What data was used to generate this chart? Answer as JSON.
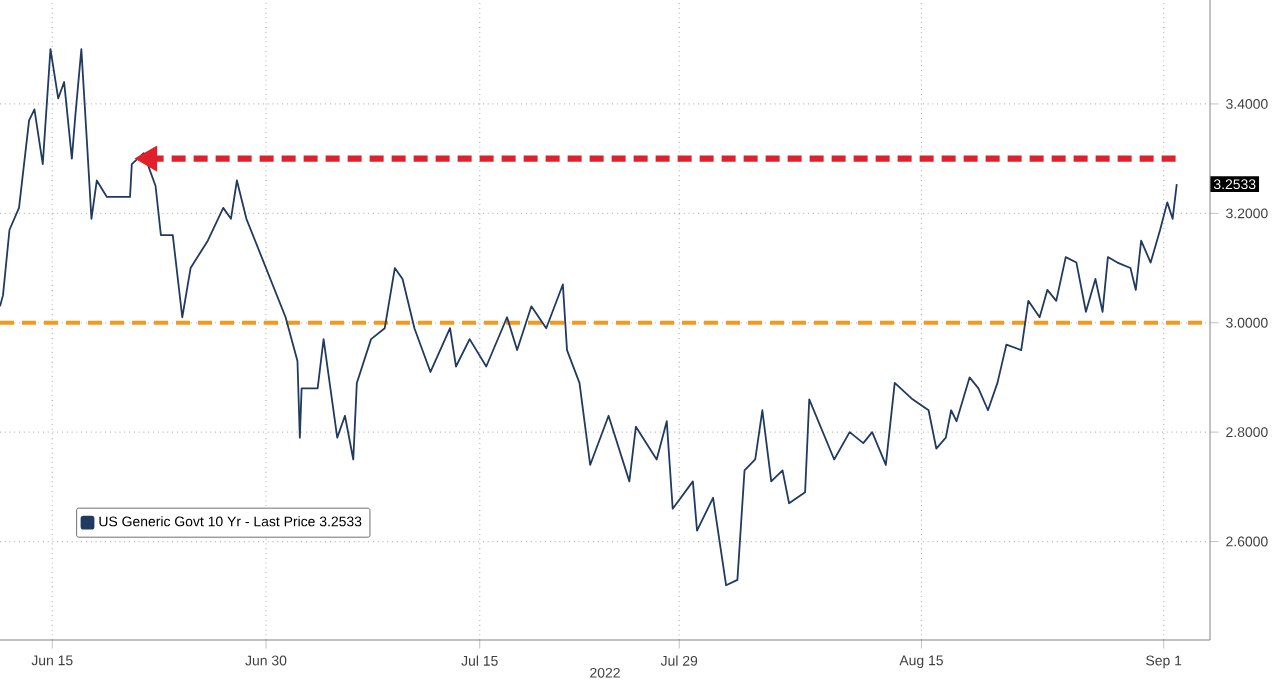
{
  "chart_data": {
    "type": "line",
    "xlabel": "2022",
    "xlim": [
      "2022-06-11T08:00",
      "2022-09-04T06:00"
    ],
    "xticks": [
      {
        "value": "2022-06-15",
        "label": "Jun 15"
      },
      {
        "value": "2022-06-30",
        "label": "Jun 30"
      },
      {
        "value": "2022-07-15",
        "label": "Jul 15"
      },
      {
        "value": "2022-07-29",
        "label": "Jul 29"
      },
      {
        "value": "2022-08-15",
        "label": "Aug 15"
      },
      {
        "value": "2022-09-01",
        "label": "Sep 1"
      }
    ],
    "ylim": [
      2.42,
      3.59
    ],
    "yticks": [
      {
        "value": 2.6,
        "label": "2.6000"
      },
      {
        "value": 2.8,
        "label": "2.8000"
      },
      {
        "value": 3.0,
        "label": "3.0000"
      },
      {
        "value": 3.2,
        "label": "3.2000"
      },
      {
        "value": 3.4,
        "label": "3.4000"
      }
    ],
    "grid": true,
    "legend": "bottom left",
    "series": [
      {
        "name": "US Generic Govt 10 Yr - Last Price 3.2533",
        "color": "#203a60",
        "x": [
          "2022-06-11T08:00",
          "2022-06-11T13:00",
          "2022-06-12T00:00",
          "2022-06-12T16:00",
          "2022-06-13T09:00",
          "2022-06-13T18:00",
          "2022-06-14T08:00",
          "2022-06-14T21:00",
          "2022-06-15T10:00",
          "2022-06-15T20:00",
          "2022-06-16T09:00",
          "2022-06-16T15:00",
          "2022-06-17T01:00",
          "2022-06-17T11:00",
          "2022-06-17T18:00",
          "2022-06-18T03:00",
          "2022-06-18T20:00",
          "2022-06-20T11:00",
          "2022-06-20T14:00",
          "2022-06-21T10:00",
          "2022-06-22T06:00",
          "2022-06-22T15:00",
          "2022-06-23T11:00",
          "2022-06-24T03:00",
          "2022-06-24T17:00",
          "2022-06-25T22:00",
          "2022-06-27T00:00",
          "2022-06-27T13:00",
          "2022-06-27T23:00",
          "2022-06-28T15:00",
          "2022-06-30T00:00",
          "2022-07-01T09:00",
          "2022-07-02T05:00",
          "2022-07-02T09:00",
          "2022-07-02T12:00",
          "2022-07-03T15:00",
          "2022-07-04T01:00",
          "2022-07-05T00:00",
          "2022-07-05T13:00",
          "2022-07-06T03:00",
          "2022-07-06T09:00",
          "2022-07-07T09:00",
          "2022-07-08T08:00",
          "2022-07-09T01:00",
          "2022-07-09T14:00",
          "2022-07-10T10:00",
          "2022-07-11T13:00",
          "2022-07-12T22:00",
          "2022-07-13T08:00",
          "2022-07-14T07:00",
          "2022-07-15T11:00",
          "2022-07-16T22:00",
          "2022-07-17T15:00",
          "2022-07-18T15:00",
          "2022-07-19T16:00",
          "2022-07-20T20:00",
          "2022-07-21T03:00",
          "2022-07-22T00:00",
          "2022-07-22T18:00",
          "2022-07-24T01:00",
          "2022-07-25T12:00",
          "2022-07-25T23:00",
          "2022-07-27T10:00",
          "2022-07-28T03:00",
          "2022-07-28T13:00",
          "2022-07-29T23:00",
          "2022-07-30T06:00",
          "2022-07-31T09:00",
          "2022-08-01T07:00",
          "2022-08-02T02:00",
          "2022-08-02T14:00",
          "2022-08-03T08:00",
          "2022-08-03T20:00",
          "2022-08-04T11:00",
          "2022-08-05T06:00",
          "2022-08-05T17:00",
          "2022-08-06T20:00",
          "2022-08-07T03:00",
          "2022-08-08T21:00",
          "2022-08-09T23:00",
          "2022-08-10T22:00",
          "2022-08-11T13:00",
          "2022-08-12T12:00",
          "2022-08-13T03:00",
          "2022-08-14T09:00",
          "2022-08-15T12:00",
          "2022-08-16T01:00",
          "2022-08-16T17:00",
          "2022-08-17T02:00",
          "2022-08-17T11:00",
          "2022-08-18T09:00",
          "2022-08-19T00:00",
          "2022-08-19T16:00",
          "2022-08-20T08:00",
          "2022-08-20T23:00",
          "2022-08-22T00:00",
          "2022-08-22T12:00",
          "2022-08-23T07:00",
          "2022-08-23T20:00",
          "2022-08-24T11:00",
          "2022-08-25T03:00",
          "2022-08-25T21:00",
          "2022-08-26T13:00",
          "2022-08-27T05:00",
          "2022-08-27T17:00",
          "2022-08-28T02:00",
          "2022-08-28T18:00",
          "2022-08-29T16:00",
          "2022-08-30T01:00",
          "2022-08-30T10:00",
          "2022-08-31T02:00",
          "2022-08-31T18:00",
          "2022-09-01T06:00",
          "2022-09-01T15:00",
          "2022-09-01T22:00"
        ],
        "values": [
          3.03,
          3.05,
          3.17,
          3.21,
          3.37,
          3.39,
          3.29,
          3.5,
          3.41,
          3.44,
          3.3,
          3.38,
          3.5,
          3.32,
          3.19,
          3.26,
          3.23,
          3.23,
          3.29,
          3.31,
          3.25,
          3.16,
          3.16,
          3.01,
          3.1,
          3.15,
          3.21,
          3.19,
          3.26,
          3.19,
          3.1,
          3.01,
          2.93,
          2.79,
          2.88,
          2.88,
          2.97,
          2.79,
          2.83,
          2.75,
          2.89,
          2.97,
          2.99,
          3.1,
          3.08,
          2.99,
          2.91,
          2.99,
          2.92,
          2.97,
          2.92,
          3.01,
          2.95,
          3.03,
          2.99,
          3.07,
          2.95,
          2.89,
          2.74,
          2.83,
          2.71,
          2.81,
          2.75,
          2.82,
          2.66,
          2.71,
          2.62,
          2.68,
          2.52,
          2.53,
          2.73,
          2.75,
          2.84,
          2.71,
          2.73,
          2.67,
          2.69,
          2.86,
          2.75,
          2.8,
          2.78,
          2.8,
          2.74,
          2.89,
          2.86,
          2.84,
          2.77,
          2.79,
          2.84,
          2.82,
          2.9,
          2.88,
          2.84,
          2.89,
          2.96,
          2.95,
          3.04,
          3.01,
          3.06,
          3.04,
          3.12,
          3.11,
          3.02,
          3.08,
          3.02,
          3.12,
          3.11,
          3.1,
          3.06,
          3.15,
          3.11,
          3.17,
          3.22,
          3.19,
          3.2533
        ]
      },
      {
        "color": "#e0202a",
        "line_style": "dashed",
        "x": [
          "2022-06-21T20:00",
          "2022-09-01T20:00"
        ],
        "values": [
          3.3,
          3.3
        ]
      }
    ],
    "ref_lines": [
      {
        "axis": "y",
        "value": 3.0,
        "color": "#f29a1e",
        "line_style": "dashed"
      }
    ],
    "annotations": [
      {
        "text": "3.2533",
        "x": "2022-09-01T22:00",
        "y": 3.2533
      }
    ]
  }
}
